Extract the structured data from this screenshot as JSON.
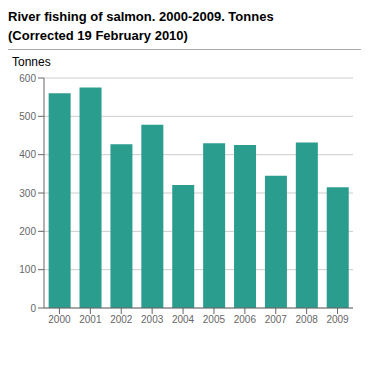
{
  "chart_data": {
    "type": "bar",
    "title": "River fishing of salmon. 2000-2009. Tonnes",
    "subtitle": "(Corrected 19 February 2010)",
    "ylabel": "Tonnes",
    "categories": [
      "2000",
      "2001",
      "2002",
      "2003",
      "2004",
      "2005",
      "2006",
      "2007",
      "2008",
      "2009"
    ],
    "values": [
      560,
      575,
      427,
      478,
      321,
      430,
      425,
      345,
      432,
      315
    ],
    "color": "#2a9d8f",
    "ylim": [
      0,
      600
    ],
    "yticks": [
      0,
      100,
      200,
      300,
      400,
      500,
      600
    ],
    "grid": true
  }
}
